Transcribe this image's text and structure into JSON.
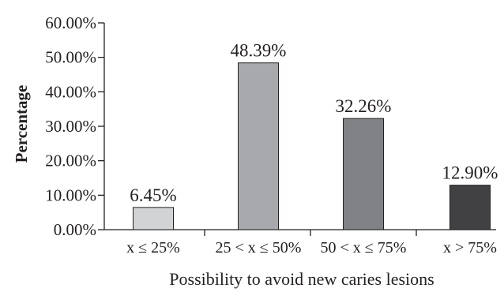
{
  "chart_data": {
    "type": "bar",
    "categories": [
      "x ≤ 25%",
      "25 < x ≤ 50%",
      "50 < x ≤ 75%",
      "x > 75%"
    ],
    "values": [
      6.45,
      48.39,
      32.26,
      12.9
    ],
    "value_labels": [
      "6.45%",
      "48.39%",
      "32.26%",
      "12.90%"
    ],
    "bar_colors": [
      "#d1d3d4",
      "#a7a9ac",
      "#808285",
      "#414042"
    ],
    "ylim": [
      0,
      60
    ],
    "yticks": [
      0,
      10,
      20,
      30,
      40,
      50,
      60
    ],
    "ytick_labels": [
      "0.00%",
      "10.00%",
      "20.00%",
      "30.00%",
      "40.00%",
      "50.00%",
      "60.00%"
    ],
    "xlabel": "Possibility to avoid new caries lesions",
    "ylabel": "Percentage",
    "grid": false,
    "legend": false
  }
}
